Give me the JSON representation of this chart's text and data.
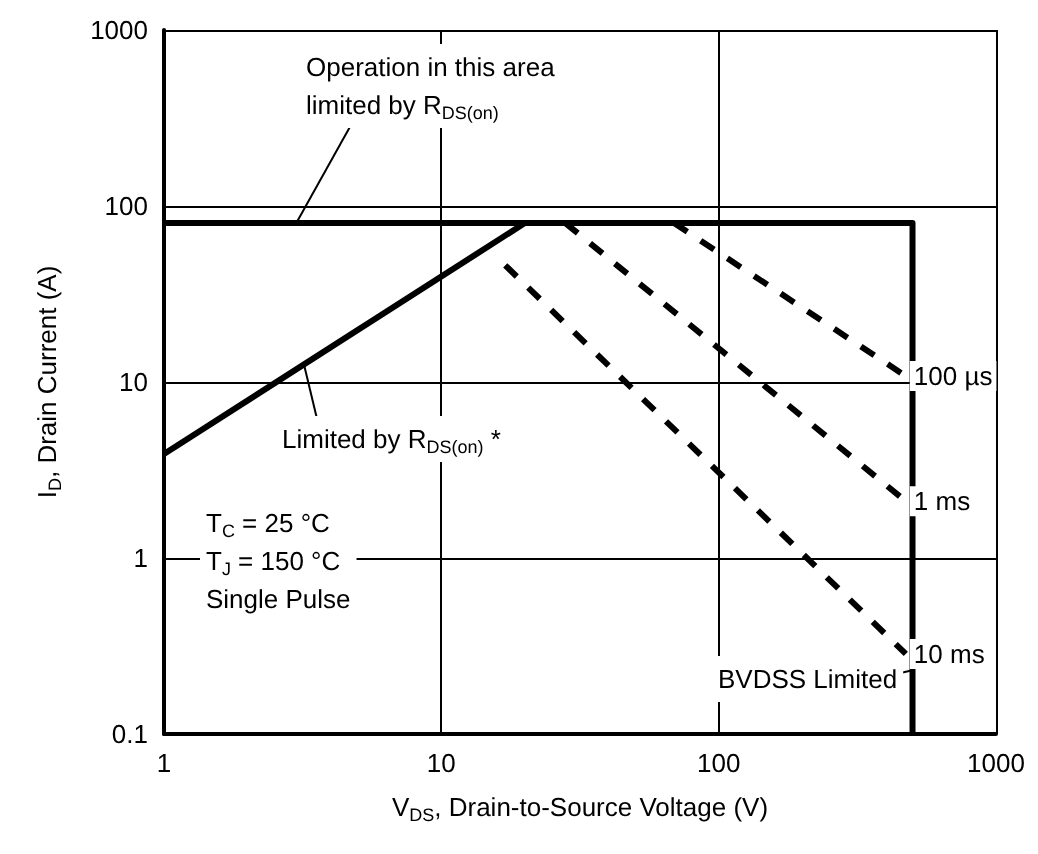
{
  "chart_data": {
    "type": "line",
    "xlabel": "V$_{DS}$, Drain-to-Source Voltage (V)",
    "ylabel": "I$_{D}$, Drain Current (A)",
    "log": "xy",
    "grid": true,
    "legend": false,
    "marker": "none",
    "xlim": [
      1,
      1000
    ],
    "xticks": [
      1,
      10,
      100,
      1000
    ],
    "ylim": [
      0.1,
      1000
    ],
    "yticks": [
      0.1,
      1,
      10,
      100,
      1000
    ],
    "series": [
      {
        "color": "#000000",
        "line_style": "solid",
        "x": [
          1,
          20
        ],
        "values": [
          3.9,
          80
        ]
      },
      {
        "color": "#000000",
        "line_style": "solid",
        "x": [
          1,
          500,
          500
        ],
        "values": [
          80,
          80,
          0.1
        ]
      },
      {
        "name": "100 µs",
        "color": "#000000",
        "line_style": "dashed",
        "x": [
          69,
          473
        ],
        "values": [
          80,
          10.8
        ]
      },
      {
        "name": "1 ms",
        "color": "#000000",
        "line_style": "dashed",
        "x": [
          28,
          473
        ],
        "values": [
          80,
          2.1
        ]
      },
      {
        "name": "10 ms",
        "color": "#000000",
        "line_style": "dashed",
        "x": [
          17,
          473
        ],
        "values": [
          46,
          0.285
        ]
      }
    ],
    "annotations": [
      {
        "text": "Operation in this area\nlimited by R$_{DS(on)}$",
        "x": 3,
        "y": 80
      },
      {
        "text": "Limited by R$_{DS(on)}$ *",
        "x": 3.2,
        "y": 12.5
      },
      "T$_{C}$ = 25 °C\nT$_{J}$ = 150 °C\nSingle Pulse",
      {
        "text": "BVDSS Limited",
        "x": 500,
        "y": 0.23
      }
    ]
  }
}
